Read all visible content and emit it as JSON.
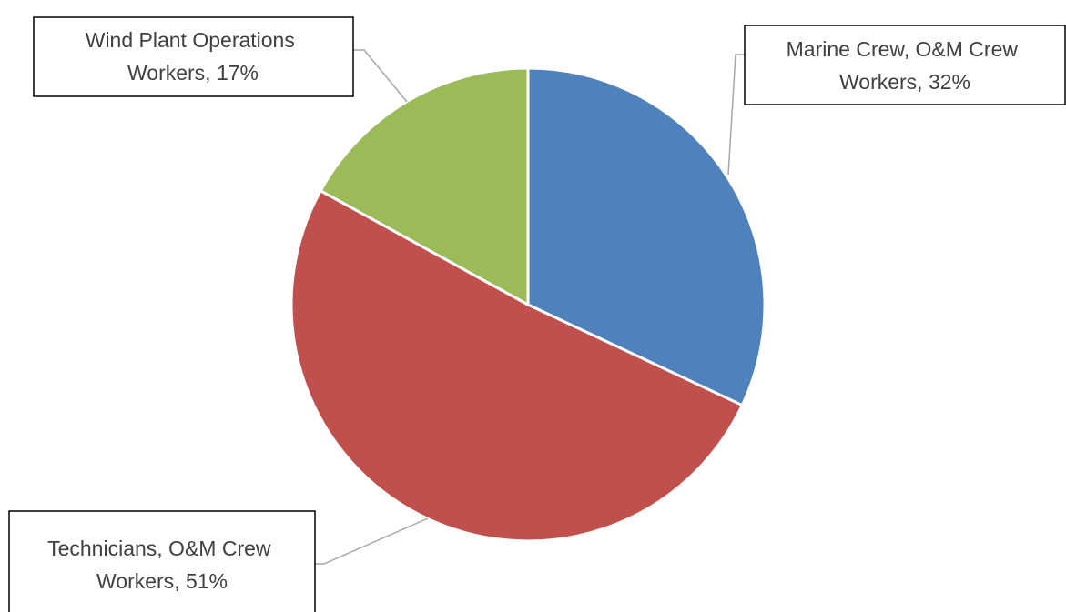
{
  "chart_data": {
    "type": "pie",
    "slices": [
      {
        "category": "Marine Crew, O&M Crew Workers",
        "value": 32,
        "line1": "Marine Crew, O&M Crew",
        "line2": "Workers, 32%",
        "color": "#4f81bd"
      },
      {
        "category": "Technicians, O&M Crew Workers",
        "value": 51,
        "line1": "Technicians, O&M Crew",
        "line2": "Workers, 51%",
        "color": "#c0504d"
      },
      {
        "category": "Wind Plant Operations Workers",
        "value": 17,
        "line1": "Wind Plant Operations",
        "line2": "Workers, 17%",
        "color": "#9bbb59"
      }
    ],
    "start_angle": "12 o'clock",
    "direction": "clockwise",
    "legend": "none",
    "data_labels": "callouts with category name and percentage"
  }
}
